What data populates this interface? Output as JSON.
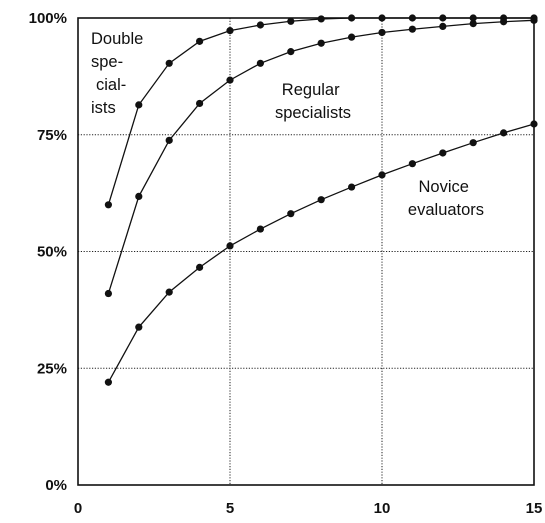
{
  "chart_data": {
    "type": "line",
    "title": "",
    "xlabel": "",
    "ylabel": "",
    "xlim": [
      0,
      15
    ],
    "ylim": [
      0,
      100
    ],
    "x_ticks": [
      "0",
      "5",
      "10",
      "15"
    ],
    "y_ticks": [
      "0%",
      "25%",
      "50%",
      "75%",
      "100%"
    ],
    "grid": true,
    "series": [
      {
        "name": "Double specialists",
        "label_lines": [
          "Double",
          "spe-",
          "cial-",
          "ists"
        ],
        "x": [
          1,
          2,
          3,
          4,
          5,
          6,
          7,
          8,
          9,
          10,
          11,
          12,
          13,
          14,
          15
        ],
        "values": [
          60,
          81.4,
          90.3,
          95,
          97.3,
          98.5,
          99.3,
          99.8,
          100,
          100,
          100,
          100,
          100,
          100,
          100
        ]
      },
      {
        "name": "Regular specialists",
        "label_lines": [
          "Regular",
          "specialists"
        ],
        "x": [
          1,
          2,
          3,
          4,
          5,
          6,
          7,
          8,
          9,
          10,
          11,
          12,
          13,
          14,
          15
        ],
        "values": [
          41,
          61.8,
          73.8,
          81.7,
          86.7,
          90.3,
          92.8,
          94.6,
          95.9,
          96.9,
          97.6,
          98.2,
          98.8,
          99.2,
          99.5
        ]
      },
      {
        "name": "Novice evaluators",
        "label_lines": [
          "Novice",
          "evaluators"
        ],
        "x": [
          1,
          2,
          3,
          4,
          5,
          6,
          7,
          8,
          9,
          10,
          11,
          12,
          13,
          14,
          15
        ],
        "values": [
          22,
          33.8,
          41.3,
          46.6,
          51.2,
          54.8,
          58.1,
          61.1,
          63.8,
          66.4,
          68.8,
          71.1,
          73.3,
          75.4,
          77.3
        ]
      }
    ]
  }
}
